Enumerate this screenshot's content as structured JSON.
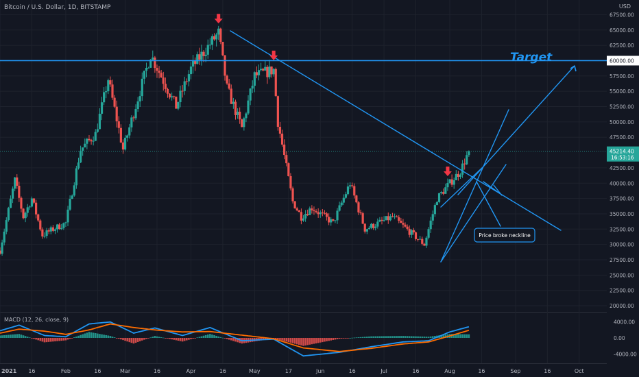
{
  "header": {
    "symbol_title": "Bitcoin / U.S. Dollar, 1D, BITSTAMP",
    "currency": "USD"
  },
  "macd": {
    "label": "MACD (12, 26, close, 9)",
    "y_ticks": [
      "4000.00",
      "0.00",
      "-4000.00"
    ]
  },
  "colors": {
    "background": "#131722",
    "up": "#26a69a",
    "down": "#ef5350",
    "drawing": "#2196f3",
    "arrow": "#f23645",
    "macd_line": "#2196f3",
    "signal_line": "#ff6d00",
    "grid": "#1e222d",
    "axis_text": "#b2b5be"
  },
  "chart_data": {
    "type": "candlestick",
    "x_ticks": [
      "2021",
      "16",
      "Feb",
      "16",
      "Mar",
      "16",
      "Apr",
      "16",
      "May",
      "17",
      "Jun",
      "16",
      "Jul",
      "16",
      "Aug",
      "16",
      "Sep",
      "16",
      "Oct"
    ],
    "y_ticks": [
      "67500.00",
      "65000.00",
      "62500.00",
      "57500.00",
      "55000.00",
      "52500.00",
      "50000.00",
      "47500.00",
      "42500.00",
      "40000.00",
      "37500.00",
      "35000.00",
      "32500.00",
      "30000.00",
      "27500.00",
      "25000.00",
      "22500.00",
      "20000.00"
    ],
    "ylim": [
      19000,
      69000
    ],
    "price_waypoints": [
      [
        "2021-01-01",
        29000
      ],
      [
        "2021-01-08",
        40500
      ],
      [
        "2021-01-12",
        34500
      ],
      [
        "2021-01-16",
        37500
      ],
      [
        "2021-01-21",
        31500
      ],
      [
        "2021-01-26",
        32500
      ],
      [
        "2021-02-01",
        33500
      ],
      [
        "2021-02-08",
        45500
      ],
      [
        "2021-02-15",
        48000
      ],
      [
        "2021-02-21",
        57000
      ],
      [
        "2021-02-28",
        45500
      ],
      [
        "2021-03-13",
        61000
      ],
      [
        "2021-03-25",
        52500
      ],
      [
        "2021-04-01",
        58700
      ],
      [
        "2021-04-14",
        64500
      ],
      [
        "2021-04-18",
        55500
      ],
      [
        "2021-04-25",
        49000
      ],
      [
        "2021-05-01",
        57500
      ],
      [
        "2021-05-10",
        58500
      ],
      [
        "2021-05-12",
        50000
      ],
      [
        "2021-05-19",
        37000
      ],
      [
        "2021-05-23",
        34500
      ],
      [
        "2021-05-28",
        36000
      ],
      [
        "2021-06-07",
        33500
      ],
      [
        "2021-06-15",
        40000
      ],
      [
        "2021-06-22",
        32500
      ],
      [
        "2021-07-05",
        34500
      ],
      [
        "2021-07-20",
        30000
      ],
      [
        "2021-07-26",
        37500
      ],
      [
        "2021-08-01",
        40000
      ],
      [
        "2021-08-06",
        42000
      ],
      [
        "2021-08-10",
        45214
      ]
    ],
    "last_price": "45214.40",
    "countdown": "16:53:16",
    "horizontal_level": {
      "value": "60000.00",
      "price": 60000
    },
    "annotations": {
      "target": "Target",
      "callout": "Price broke neckline"
    },
    "arrow_dates": [
      "2021-04-14",
      "2021-05-10",
      "2021-07-31"
    ],
    "macd_waypoints": [
      [
        "2021-01-01",
        1800,
        1200
      ],
      [
        "2021-01-10",
        3200,
        2200
      ],
      [
        "2021-01-22",
        600,
        1700
      ],
      [
        "2021-02-01",
        300,
        900
      ],
      [
        "2021-02-12",
        3500,
        2000
      ],
      [
        "2021-02-22",
        4000,
        3500
      ],
      [
        "2021-03-05",
        1200,
        2600
      ],
      [
        "2021-03-15",
        2500,
        2000
      ],
      [
        "2021-03-28",
        600,
        1500
      ],
      [
        "2021-04-10",
        2600,
        1600
      ],
      [
        "2021-04-25",
        -700,
        700
      ],
      [
        "2021-05-10",
        -300,
        -200
      ],
      [
        "2021-05-24",
        -4500,
        -2500
      ],
      [
        "2021-06-10",
        -3600,
        -3400
      ],
      [
        "2021-06-25",
        -2200,
        -2600
      ],
      [
        "2021-07-10",
        -1000,
        -1500
      ],
      [
        "2021-07-22",
        -700,
        -1000
      ],
      [
        "2021-08-01",
        1500,
        500
      ],
      [
        "2021-08-10",
        2800,
        1900
      ]
    ]
  }
}
